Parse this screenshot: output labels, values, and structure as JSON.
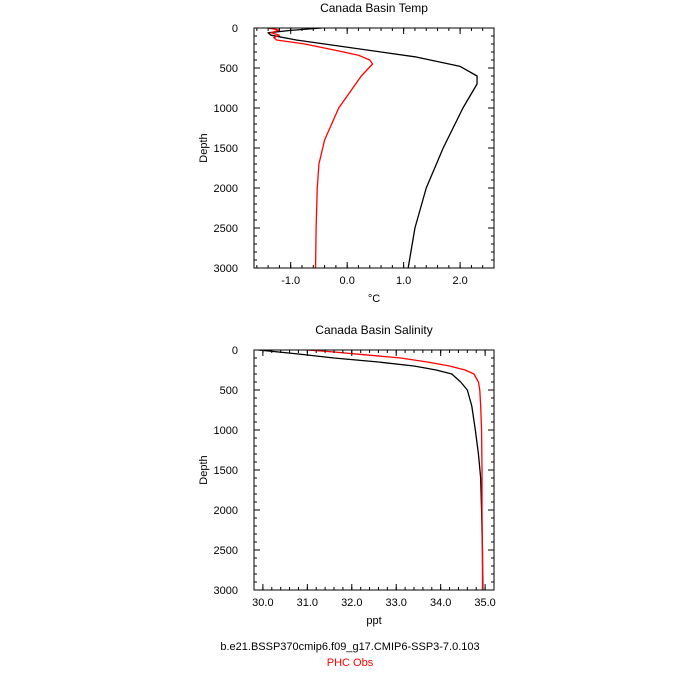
{
  "chart_data": [
    {
      "type": "line",
      "title": "Canada Basin Temp",
      "xlabel": "°C",
      "ylabel": "Depth",
      "xlim": [
        -1.65,
        2.6
      ],
      "ylim": [
        3000,
        0
      ],
      "x_ticks": [
        -1.0,
        0.0,
        1.0,
        2.0
      ],
      "x_tick_labels": [
        "-1.0",
        "0.0",
        "1.0",
        "2.0"
      ],
      "x_minor_step": 0.2,
      "y_ticks": [
        0,
        500,
        1000,
        1500,
        2000,
        2500,
        3000
      ],
      "y_tick_labels": [
        "0",
        "500",
        "1000",
        "1500",
        "2000",
        "2500",
        "3000"
      ],
      "y_minor_step": 100,
      "grid": false,
      "series": [
        {
          "name": "b.e21.BSSP370cmip6.f09_g17.CMIP6-SSP3-7.0.103",
          "color": "#000000",
          "points": [
            [
              -0.45,
              0
            ],
            [
              -1.0,
              30
            ],
            [
              -1.4,
              60
            ],
            [
              -1.35,
              90
            ],
            [
              -0.9,
              150
            ],
            [
              0.1,
              250
            ],
            [
              1.2,
              360
            ],
            [
              2.0,
              480
            ],
            [
              2.3,
              600
            ],
            [
              2.3,
              700
            ],
            [
              2.05,
              1000
            ],
            [
              1.7,
              1500
            ],
            [
              1.4,
              2000
            ],
            [
              1.2,
              2500
            ],
            [
              1.08,
              3000
            ]
          ]
        },
        {
          "name": "PHC Obs",
          "color": "#ff0000",
          "points": [
            [
              -1.4,
              0
            ],
            [
              -1.2,
              25
            ],
            [
              -1.35,
              60
            ],
            [
              -1.2,
              90
            ],
            [
              -1.3,
              120
            ],
            [
              -1.25,
              150
            ],
            [
              -0.75,
              200
            ],
            [
              -0.2,
              280
            ],
            [
              0.2,
              340
            ],
            [
              0.4,
              400
            ],
            [
              0.45,
              450
            ],
            [
              0.25,
              600
            ],
            [
              0.0,
              850
            ],
            [
              -0.15,
              1000
            ],
            [
              -0.4,
              1400
            ],
            [
              -0.5,
              1700
            ],
            [
              -0.53,
              2000
            ],
            [
              -0.55,
              2500
            ],
            [
              -0.56,
              3000
            ]
          ]
        }
      ]
    },
    {
      "type": "line",
      "title": "Canada Basin Salinity",
      "xlabel": "ppt",
      "ylabel": "Depth",
      "xlim": [
        29.8,
        35.2
      ],
      "ylim": [
        3000,
        0
      ],
      "x_ticks": [
        30.0,
        31.0,
        32.0,
        33.0,
        34.0,
        35.0
      ],
      "x_tick_labels": [
        "30.0",
        "31.0",
        "32.0",
        "33.0",
        "34.0",
        "35.0"
      ],
      "x_minor_step": 0.2,
      "y_ticks": [
        0,
        500,
        1000,
        1500,
        2000,
        2500,
        3000
      ],
      "y_tick_labels": [
        "0",
        "500",
        "1000",
        "1500",
        "2000",
        "2500",
        "3000"
      ],
      "y_minor_step": 100,
      "grid": false,
      "series": [
        {
          "name": "b.e21.BSSP370cmip6.f09_g17.CMIP6-SSP3-7.0.103",
          "color": "#000000",
          "points": [
            [
              29.9,
              0
            ],
            [
              30.8,
              50
            ],
            [
              31.6,
              100
            ],
            [
              32.6,
              150
            ],
            [
              33.4,
              200
            ],
            [
              33.9,
              250
            ],
            [
              34.25,
              300
            ],
            [
              34.45,
              400
            ],
            [
              34.6,
              500
            ],
            [
              34.7,
              700
            ],
            [
              34.78,
              1000
            ],
            [
              34.85,
              1300
            ],
            [
              34.9,
              1600
            ],
            [
              34.92,
              2000
            ],
            [
              34.94,
              2500
            ],
            [
              34.95,
              3000
            ]
          ]
        },
        {
          "name": "PHC Obs",
          "color": "#ff0000",
          "points": [
            [
              31.0,
              0
            ],
            [
              31.6,
              25
            ],
            [
              32.3,
              60
            ],
            [
              33.1,
              100
            ],
            [
              33.7,
              150
            ],
            [
              34.2,
              200
            ],
            [
              34.55,
              250
            ],
            [
              34.75,
              300
            ],
            [
              34.85,
              400
            ],
            [
              34.88,
              500
            ],
            [
              34.9,
              700
            ],
            [
              34.92,
              1000
            ],
            [
              34.93,
              1500
            ],
            [
              34.93,
              2000
            ],
            [
              34.94,
              2500
            ],
            [
              34.94,
              3000
            ]
          ]
        }
      ]
    }
  ],
  "legend": {
    "model_label": "b.e21.BSSP370cmip6.f09_g17.CMIP6-SSP3-7.0.103",
    "model_color": "#000000",
    "obs_label": "PHC Obs",
    "obs_color": "#ff0000"
  }
}
